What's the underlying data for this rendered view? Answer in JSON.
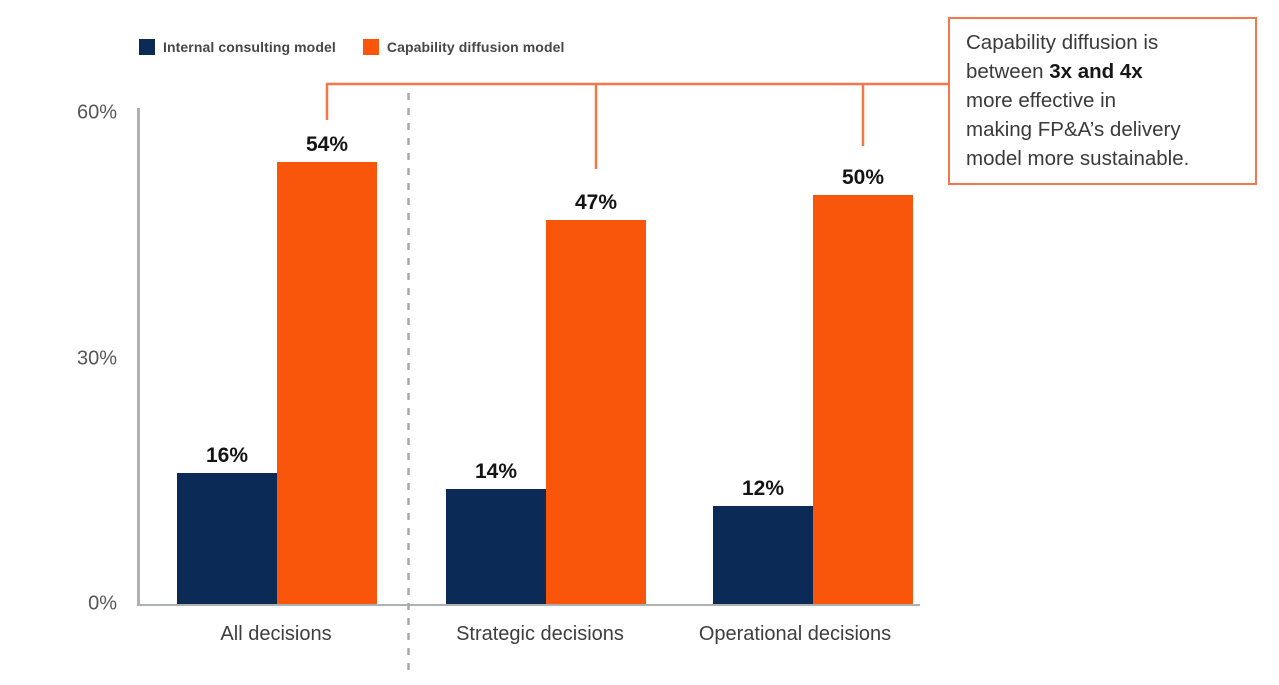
{
  "legend": {
    "items": [
      {
        "label": "Internal consulting model",
        "color": "#0B2A55"
      },
      {
        "label": "Capability diffusion model",
        "color": "#F9560C"
      }
    ]
  },
  "chart_data": {
    "type": "bar",
    "title": "",
    "xlabel": "",
    "ylabel": "",
    "categories": [
      "All decisions",
      "Strategic decisions",
      "Operational decisions"
    ],
    "series": [
      {
        "name": "Internal consulting model",
        "color": "#0B2A55",
        "values": [
          16,
          14,
          12
        ]
      },
      {
        "name": "Capability diffusion model",
        "color": "#F9560C",
        "values": [
          54,
          47,
          50
        ]
      }
    ],
    "value_label_suffix": "%",
    "yticks": [
      60,
      30,
      0
    ],
    "ytick_labels": [
      "60%",
      "30%",
      "0%"
    ],
    "ylim": [
      0,
      60
    ],
    "grid": false,
    "legend_position": "top-left",
    "group_separator_after_category": "All decisions"
  },
  "callout": {
    "border_color": "#F4764B",
    "connector_color": "#F4764B",
    "lines": [
      [
        {
          "t": "Capability diffusion is",
          "b": false
        }
      ],
      [
        {
          "t": "between ",
          "b": false
        },
        {
          "t": "3x and 4x",
          "b": true
        }
      ],
      [
        {
          "t": "more effective in",
          "b": false
        }
      ],
      [
        {
          "t": "making FP&A’s delivery",
          "b": false
        }
      ],
      [
        {
          "t": "model more sustainable.",
          "b": false
        }
      ]
    ]
  },
  "colors": {
    "bar_navy": "#0B2A55",
    "bar_orange": "#F9560C",
    "connector": "#F4764B",
    "axis": "#aeb1b3",
    "separator": "#a8a8a8"
  }
}
